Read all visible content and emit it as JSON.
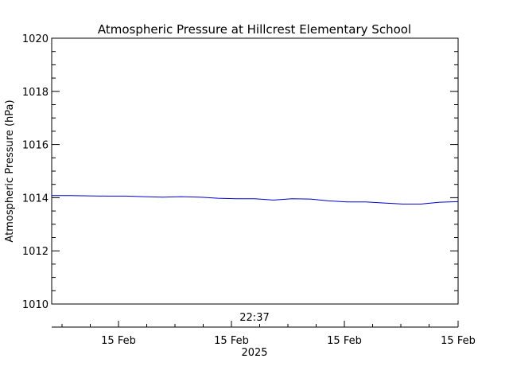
{
  "chart_data": {
    "type": "line",
    "title": "Atmospheric Pressure at Hillcrest Elementary School",
    "ylabel": "Atmospheric Pressure (hPa)",
    "ylim": [
      1010,
      1020
    ],
    "yticks": [
      1010,
      1012,
      1014,
      1016,
      1018,
      1020
    ],
    "time_label": "22:37",
    "year_label": "2025",
    "xtick_labels": [
      "15 Feb",
      "15 Feb",
      "15 Feb",
      "15 Feb"
    ],
    "grid": false,
    "colors": {
      "series": "#0000cc",
      "axis": "#000000"
    },
    "series": [
      {
        "values": [
          1014.08,
          1014.08,
          1014.07,
          1014.06,
          1014.06,
          1014.04,
          1014.02,
          1014.04,
          1014.02,
          1013.98,
          1013.96,
          1013.96,
          1013.91,
          1013.96,
          1013.95,
          1013.88,
          1013.84,
          1013.84,
          1013.8,
          1013.76,
          1013.76,
          1013.83,
          1013.85
        ]
      }
    ]
  }
}
